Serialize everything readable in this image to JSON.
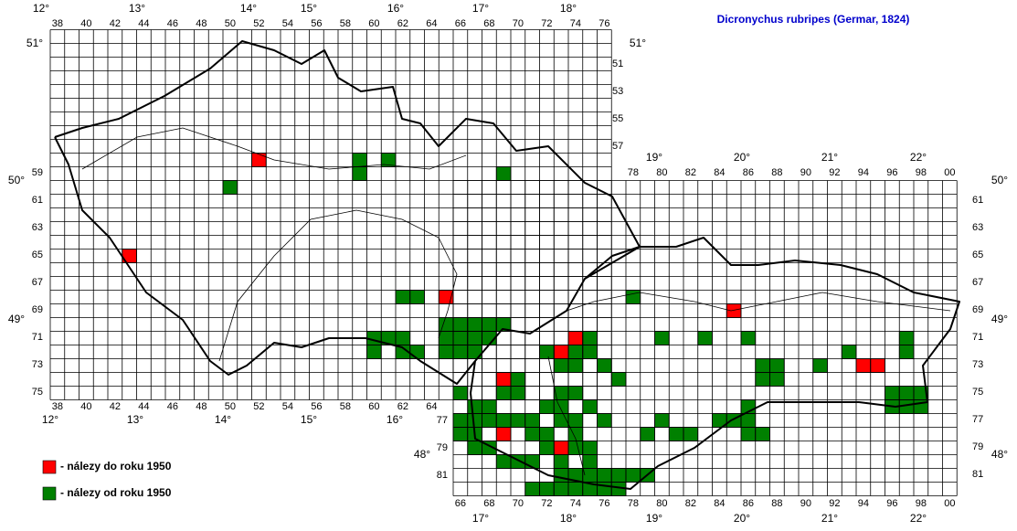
{
  "title": "Dicronychus rubripes (Germar, 1824)",
  "grid": {
    "cz_cols_top": [
      "38",
      "40",
      "42",
      "44",
      "46",
      "48",
      "50",
      "52",
      "54",
      "56",
      "58",
      "60",
      "62",
      "64",
      "66",
      "68",
      "70",
      "72",
      "74",
      "76"
    ],
    "cz_cols_bottom": [
      "38",
      "40",
      "42",
      "44",
      "46",
      "48",
      "50",
      "52",
      "54",
      "56",
      "58",
      "60",
      "62",
      "64"
    ],
    "sk_cols_top": [
      "78",
      "80",
      "82",
      "84",
      "86",
      "88",
      "90",
      "92",
      "94",
      "96",
      "98",
      "00"
    ],
    "sk_cols_bottom": [
      "66",
      "68",
      "70",
      "72",
      "74",
      "76",
      "78",
      "80",
      "82",
      "84",
      "86",
      "88",
      "90",
      "92",
      "94",
      "96",
      "98",
      "00"
    ],
    "cz_rows_right": [
      "51",
      "53",
      "55",
      "57"
    ],
    "cz_rows_left": [
      "59",
      "61",
      "63",
      "65",
      "67",
      "69",
      "71",
      "73",
      "75"
    ],
    "sk_rows_right": [
      "61",
      "63",
      "65",
      "67",
      "69",
      "71",
      "73",
      "75",
      "77",
      "79",
      "81"
    ],
    "sk_rows_left": [
      "77",
      "79",
      "81"
    ]
  },
  "degrees": {
    "lon_top": [
      "12°",
      "13°",
      "14°",
      "15°",
      "16°",
      "17°",
      "18°",
      "19°",
      "20°",
      "21°",
      "22°"
    ],
    "lon_bottom": [
      "12°",
      "13°",
      "14°",
      "15°",
      "16°",
      "17°",
      "18°",
      "19°",
      "20°",
      "21°",
      "22°"
    ],
    "lat_left": [
      "51°",
      "50°",
      "49°",
      "48°"
    ],
    "lat_right": [
      "51°",
      "50°",
      "49°",
      "48°"
    ]
  },
  "series": [
    {
      "name": "- nálezy do roku 1950",
      "color": "#ff0000",
      "cells": [
        [
          52,
          58
        ],
        [
          43,
          65
        ],
        [
          65,
          68
        ],
        [
          74,
          71
        ],
        [
          73,
          72
        ],
        [
          69,
          74
        ],
        [
          69,
          78
        ],
        [
          73,
          79
        ],
        [
          85,
          69
        ],
        [
          94,
          73
        ],
        [
          95,
          73
        ]
      ]
    },
    {
      "name": "- nálezy od roku 1950",
      "color": "#008000",
      "cells": [
        [
          59,
          58
        ],
        [
          59,
          59
        ],
        [
          61,
          58
        ],
        [
          50,
          60
        ],
        [
          69,
          59
        ],
        [
          62,
          68
        ],
        [
          63,
          68
        ],
        [
          78,
          68
        ],
        [
          65,
          70
        ],
        [
          66,
          70
        ],
        [
          67,
          70
        ],
        [
          68,
          70
        ],
        [
          69,
          70
        ],
        [
          60,
          71
        ],
        [
          61,
          71
        ],
        [
          62,
          71
        ],
        [
          65,
          71
        ],
        [
          66,
          71
        ],
        [
          67,
          71
        ],
        [
          68,
          71
        ],
        [
          75,
          71
        ],
        [
          80,
          71
        ],
        [
          83,
          71
        ],
        [
          86,
          71
        ],
        [
          97,
          71
        ],
        [
          60,
          72
        ],
        [
          62,
          72
        ],
        [
          63,
          72
        ],
        [
          65,
          72
        ],
        [
          66,
          72
        ],
        [
          67,
          72
        ],
        [
          72,
          72
        ],
        [
          74,
          72
        ],
        [
          75,
          72
        ],
        [
          93,
          72
        ],
        [
          97,
          72
        ],
        [
          73,
          73
        ],
        [
          74,
          73
        ],
        [
          76,
          73
        ],
        [
          87,
          73
        ],
        [
          88,
          73
        ],
        [
          91,
          73
        ],
        [
          70,
          74
        ],
        [
          77,
          74
        ],
        [
          87,
          74
        ],
        [
          88,
          74
        ],
        [
          66,
          75
        ],
        [
          69,
          75
        ],
        [
          70,
          75
        ],
        [
          73,
          75
        ],
        [
          74,
          75
        ],
        [
          96,
          75
        ],
        [
          97,
          75
        ],
        [
          98,
          75
        ],
        [
          67,
          76
        ],
        [
          68,
          76
        ],
        [
          72,
          76
        ],
        [
          73,
          76
        ],
        [
          75,
          76
        ],
        [
          86,
          76
        ],
        [
          96,
          76
        ],
        [
          97,
          76
        ],
        [
          98,
          76
        ],
        [
          66,
          77
        ],
        [
          67,
          77
        ],
        [
          68,
          77
        ],
        [
          69,
          77
        ],
        [
          70,
          77
        ],
        [
          71,
          77
        ],
        [
          73,
          77
        ],
        [
          74,
          77
        ],
        [
          76,
          77
        ],
        [
          80,
          77
        ],
        [
          84,
          77
        ],
        [
          85,
          77
        ],
        [
          86,
          77
        ],
        [
          66,
          78
        ],
        [
          67,
          78
        ],
        [
          71,
          78
        ],
        [
          72,
          78
        ],
        [
          74,
          78
        ],
        [
          79,
          78
        ],
        [
          81,
          78
        ],
        [
          82,
          78
        ],
        [
          86,
          78
        ],
        [
          87,
          78
        ],
        [
          67,
          79
        ],
        [
          68,
          79
        ],
        [
          72,
          79
        ],
        [
          74,
          79
        ],
        [
          75,
          79
        ],
        [
          69,
          80
        ],
        [
          70,
          80
        ],
        [
          71,
          80
        ],
        [
          73,
          80
        ],
        [
          75,
          80
        ],
        [
          73,
          81
        ],
        [
          74,
          81
        ],
        [
          75,
          81
        ],
        [
          76,
          81
        ],
        [
          77,
          81
        ],
        [
          78,
          81
        ],
        [
          79,
          81
        ],
        [
          71,
          82
        ],
        [
          72,
          82
        ],
        [
          73,
          82
        ],
        [
          74,
          82
        ],
        [
          75,
          82
        ],
        [
          76,
          82
        ],
        [
          77,
          82
        ]
      ]
    }
  ]
}
